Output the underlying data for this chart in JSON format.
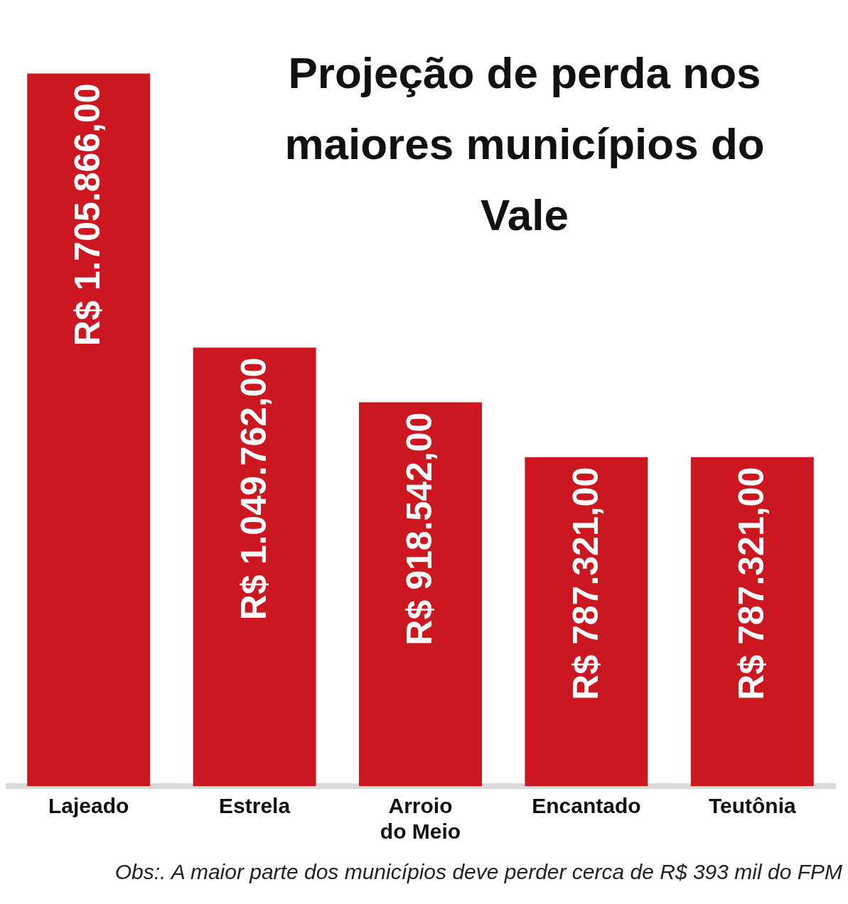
{
  "chart_data": {
    "type": "bar",
    "title": "Projeção de perda nos maiores municípios do Vale",
    "categories": [
      "Lajeado",
      "Estrela",
      "Arroio do Meio",
      "Encantado",
      "Teutônia"
    ],
    "values": [
      1705866,
      1049762,
      918542,
      787321,
      787321
    ],
    "value_labels": [
      "R$ 1.705.866,00",
      "R$ 1.049.762,00",
      "R$ 918.542,00",
      "R$ 787.321,00",
      "R$ 787.321,00"
    ],
    "color": "#cd1720",
    "grid": false,
    "legend": false,
    "tick_labels": "x",
    "annotations": [
      "Obs:. A maior parte dos municípios deve perder cerca de R$ 393 mil do FPM"
    ]
  }
}
